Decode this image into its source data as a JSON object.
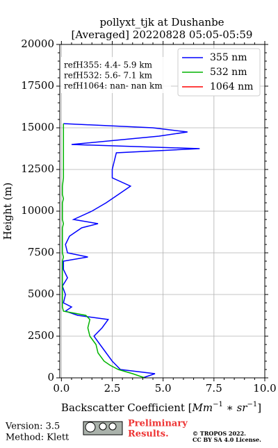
{
  "chart_data": {
    "type": "line",
    "title": [
      "pollyxt_tjk at Dushanbe",
      "[Averaged] 20220828 05:05-05:59"
    ],
    "xlabel": [
      "Backscatter Coefficient [",
      "Mm",
      "−1",
      " ∗ ",
      "sr",
      "−1",
      "]"
    ],
    "ylabel": "Height (m)",
    "y": [
      0,
      250,
      500,
      750,
      1000,
      1500,
      2000,
      2500,
      3000,
      3500,
      3750,
      4000,
      4250,
      4500,
      5000,
      5500,
      6000,
      6500,
      7000,
      7250,
      7500,
      8000,
      8500,
      9000,
      9250,
      9500,
      10000,
      10500,
      10750,
      11000,
      11500,
      12000,
      12500,
      13000,
      13500,
      13750,
      14000,
      14500,
      14750,
      15000,
      15250
    ],
    "series": [
      {
        "name": "355 nm",
        "color": "#0000ff",
        "values": [
          4.0,
          4.6,
          2.9,
          2.7,
          2.5,
          2.2,
          1.9,
          1.6,
          2.0,
          2.3,
          0.8,
          0.2,
          0.5,
          0.1,
          0.2,
          0.05,
          0.3,
          0.1,
          0.1,
          1.3,
          0.3,
          0.2,
          0.4,
          1.0,
          1.8,
          0.6,
          1.5,
          2.2,
          2.5,
          2.8,
          3.4,
          2.5,
          2.5,
          2.6,
          2.7,
          6.8,
          0.5,
          4.8,
          6.2,
          4.5,
          0.1
        ]
      },
      {
        "name": "532 nm",
        "color": "#00b400",
        "values": [
          4.1,
          3.5,
          2.8,
          2.4,
          2.1,
          1.8,
          1.7,
          1.4,
          1.3,
          1.4,
          1.2,
          0.1,
          0.05,
          0.05,
          0.05,
          0.05,
          0.05,
          0.05,
          0.05,
          0.1,
          0.05,
          0.05,
          0.05,
          0.05,
          0.1,
          0.05,
          0.05,
          0.05,
          0.1,
          0.05,
          0.05,
          0.1,
          0.1,
          0.1,
          0.1,
          0.1,
          0.1,
          0.1,
          0.1,
          0.1,
          0.1
        ]
      },
      {
        "name": "1064 nm",
        "color": "#ff0000",
        "values": [
          null,
          null,
          null,
          null,
          null,
          null,
          null,
          null,
          null,
          null,
          null,
          null,
          null,
          null,
          null,
          null,
          null,
          null,
          null,
          null,
          null,
          null,
          null,
          null,
          null,
          null,
          null,
          null,
          null,
          null,
          null,
          null,
          null,
          null,
          null,
          null,
          null,
          null,
          null,
          null,
          null
        ]
      }
    ],
    "xlim": [
      -0.08,
      10
    ],
    "ylim": [
      0,
      20000
    ],
    "xticks": [
      {
        "value": 0,
        "label": "0.0"
      },
      2.5,
      {
        "value": 5,
        "label": "5.0"
      },
      7.5,
      {
        "value": 10,
        "label": "10.0"
      }
    ],
    "yticks": [
      0,
      2500,
      5000,
      7500,
      10000,
      12500,
      15000,
      17500,
      20000
    ],
    "grid": true,
    "legend": "upper right",
    "annotations": [
      "refH355:  4.4- 5.9 km",
      "refH532:  5.6- 7.1 km",
      "refH1064:  nan- nan km"
    ],
    "footer": {
      "version": "Version: 3.5",
      "method": "Method: Klett",
      "preliminary": [
        "Preliminary",
        "Results."
      ],
      "license": [
        "© TROPOS 2022.",
        "CC BY SA 4.0 License."
      ]
    }
  }
}
